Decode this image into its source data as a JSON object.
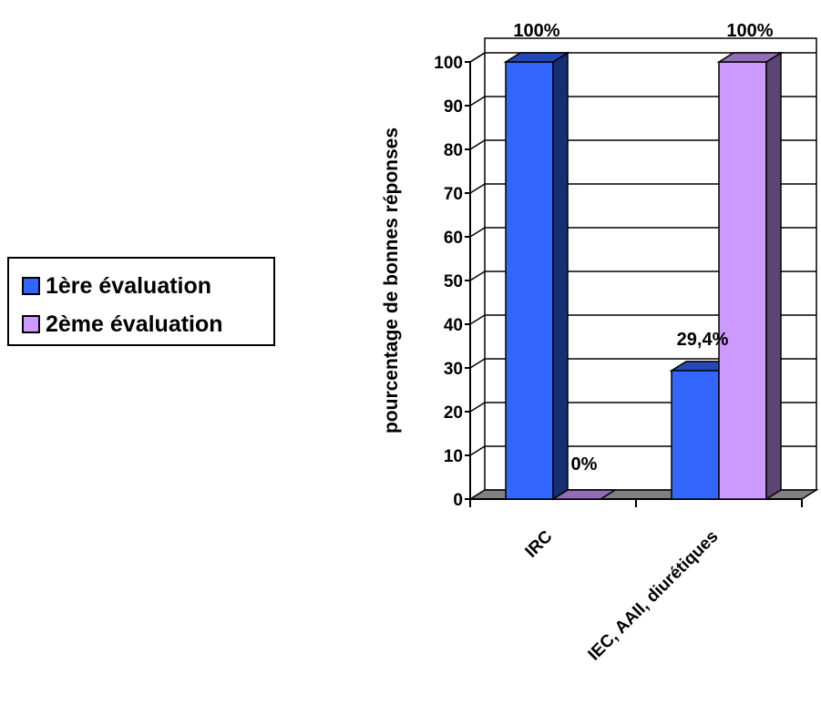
{
  "chart_data": {
    "type": "bar",
    "categories": [
      "IRC",
      "IEC, AAII, diurétiques"
    ],
    "series": [
      {
        "name": "1ère évaluation",
        "color": "#3366ff",
        "values": [
          100,
          29.4
        ],
        "labels": [
          "100%",
          "29,4%"
        ]
      },
      {
        "name": "2ème évaluation",
        "color": "#cc99ff",
        "values": [
          0,
          100
        ],
        "labels": [
          "0%",
          "100%"
        ]
      }
    ],
    "ylabel": "pourcentage de bonnes réponses",
    "xlabel": "",
    "ylim": [
      0,
      100
    ],
    "yticks": [
      0,
      10,
      20,
      30,
      40,
      50,
      60,
      70,
      80,
      90,
      100
    ],
    "grid": true,
    "legend_position": "left"
  }
}
